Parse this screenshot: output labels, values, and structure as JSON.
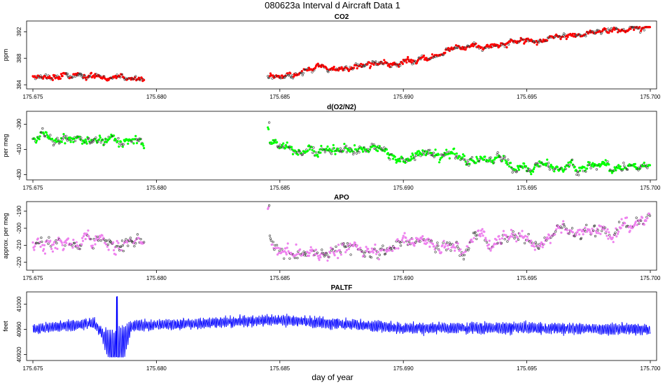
{
  "figure": {
    "title": "080623a   Interval d Aircraft Data 1",
    "xlabel": "day of year"
  },
  "colors": {
    "CO2": "#ff0000",
    "O2N2": "#00ff00",
    "APO": "#ee82ee",
    "PALTF": "#0000ff"
  },
  "chart_data": [
    {
      "type": "scatter",
      "title": "CO2",
      "ylabel": "ppm",
      "xlim": [
        175.675,
        175.7
      ],
      "ylim": [
        383.8,
        393.2
      ],
      "xticks": [
        "175.675",
        "175.680",
        "175.685",
        "175.690",
        "175.695",
        "175.700"
      ],
      "yticks": [
        "384",
        "388",
        "392"
      ],
      "series": [
        {
          "x": [
            175.675,
            175.6795,
            175.6845,
            175.688,
            175.69,
            175.693,
            175.696,
            175.698,
            175.7
          ],
          "y": [
            385.2,
            385.0,
            385.3,
            386.3,
            387.4,
            389.5,
            391.0,
            392.0,
            393.0
          ]
        }
      ]
    },
    {
      "type": "scatter",
      "title": "d(O2/N2)",
      "ylabel": "per meg",
      "xlim": [
        175.675,
        175.7
      ],
      "ylim": [
        -432,
        -382
      ],
      "xticks": [
        "175.675",
        "175.680",
        "175.685",
        "175.690",
        "175.695",
        "175.700"
      ],
      "yticks": [
        "-390",
        "-410",
        "-430"
      ],
      "series": [
        {
          "x": [
            175.675,
            175.678,
            175.6795,
            175.6845,
            175.688,
            175.691,
            175.694,
            175.697,
            175.7
          ],
          "y": [
            -403,
            -400,
            -406,
            -405,
            -410,
            -416,
            -420,
            -423,
            -424
          ]
        }
      ]
    },
    {
      "type": "scatter",
      "title": "APO",
      "ylabel": "approx. per meg",
      "xlim": [
        175.675,
        175.7
      ],
      "ylim": [
        -223,
        -186
      ],
      "xticks": [
        "175.675",
        "175.680",
        "175.685",
        "175.690",
        "175.695",
        "175.700"
      ],
      "yticks": [
        "-190",
        "-200",
        "-210",
        "-220"
      ],
      "series": [
        {
          "x": [
            175.675,
            175.678,
            175.6795,
            175.6845,
            175.688,
            175.691,
            175.694,
            175.697,
            175.7
          ],
          "y": [
            -211,
            -207,
            -213,
            -212,
            -212,
            -210,
            -207,
            -203,
            -196
          ]
        }
      ]
    },
    {
      "type": "line",
      "title": "PALTF",
      "ylabel": "feet",
      "xlim": [
        175.675,
        175.7
      ],
      "ylim": [
        40915,
        41015
      ],
      "xticks": [
        "175.675",
        "175.680",
        "175.685",
        "175.690",
        "175.695",
        "175.700"
      ],
      "yticks": [
        "40920",
        "40960",
        "41000"
      ],
      "series": [
        {
          "x": [
            175.675,
            175.6775,
            175.6784,
            175.679,
            175.685,
            175.69,
            175.695,
            175.7
          ],
          "y": [
            40960,
            40970,
            40915,
            40965,
            40975,
            40962,
            40962,
            40960
          ]
        }
      ]
    }
  ]
}
